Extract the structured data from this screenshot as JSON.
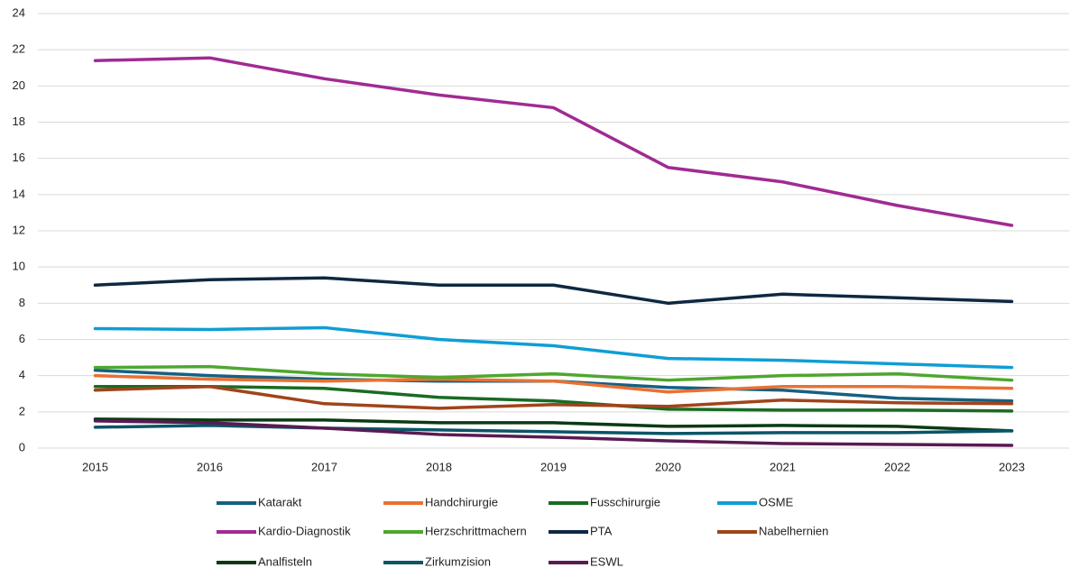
{
  "chart_data": {
    "type": "line",
    "categories": [
      "2015",
      "2016",
      "2017",
      "2018",
      "2019",
      "2020",
      "2021",
      "2022",
      "2023"
    ],
    "series": [
      {
        "name": "Katarakt",
        "color": "#156082",
        "values": [
          4.3,
          4.0,
          3.8,
          3.7,
          3.7,
          3.35,
          3.2,
          2.75,
          2.6
        ]
      },
      {
        "name": "Handchirurgie",
        "color": "#e97132",
        "values": [
          4.0,
          3.8,
          3.7,
          3.8,
          3.7,
          3.1,
          3.4,
          3.4,
          3.3
        ]
      },
      {
        "name": "Fusschirurgie",
        "color": "#196b24",
        "values": [
          3.4,
          3.4,
          3.3,
          2.8,
          2.6,
          2.15,
          2.1,
          2.1,
          2.05
        ]
      },
      {
        "name": "OSME",
        "color": "#0f9ed5",
        "values": [
          6.6,
          6.55,
          6.65,
          6.0,
          5.65,
          4.95,
          4.85,
          4.65,
          4.45
        ]
      },
      {
        "name": "Kardio-Diagnostik",
        "color": "#a02b93",
        "values": [
          21.4,
          21.55,
          20.4,
          19.5,
          18.8,
          15.5,
          14.7,
          13.4,
          12.3
        ]
      },
      {
        "name": "Herzschrittmachern",
        "color": "#4ea72e",
        "values": [
          4.45,
          4.5,
          4.1,
          3.9,
          4.1,
          3.75,
          4.0,
          4.1,
          3.75
        ]
      },
      {
        "name": "PTA",
        "color": "#0e2841",
        "values": [
          9.0,
          9.3,
          9.4,
          9.0,
          9.0,
          8.0,
          8.5,
          8.3,
          8.1
        ]
      },
      {
        "name": "Nabelhernien",
        "color": "#a0441a",
        "values": [
          3.2,
          3.4,
          2.45,
          2.2,
          2.4,
          2.3,
          2.65,
          2.5,
          2.45
        ]
      },
      {
        "name": "Analfisteln",
        "color": "#0b3a14",
        "values": [
          1.6,
          1.55,
          1.55,
          1.4,
          1.4,
          1.2,
          1.25,
          1.2,
          0.95
        ]
      },
      {
        "name": "Zirkumzision",
        "color": "#0a5566",
        "values": [
          1.15,
          1.25,
          1.1,
          1.0,
          0.9,
          0.8,
          0.85,
          0.85,
          0.95
        ]
      },
      {
        "name": "ESWL",
        "color": "#5a1a52",
        "values": [
          1.5,
          1.4,
          1.1,
          0.75,
          0.6,
          0.4,
          0.25,
          0.2,
          0.15
        ]
      }
    ],
    "ylim": [
      0,
      24
    ],
    "yticks": [
      0,
      2,
      4,
      6,
      8,
      10,
      12,
      14,
      16,
      18,
      20,
      22,
      24
    ],
    "grid": true,
    "legend": "bottom"
  }
}
